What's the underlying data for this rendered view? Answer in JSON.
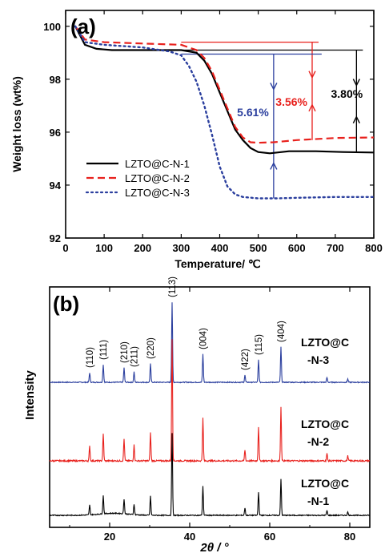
{
  "chart_data": [
    {
      "panel_label": "(a)",
      "type": "line",
      "xlabel": "Temperature/ ℃",
      "ylabel": "Weight loss (wt%)",
      "xlim": [
        0,
        800
      ],
      "ylim": [
        92,
        100.6
      ],
      "xticks": [
        "0",
        "100",
        "200",
        "300",
        "400",
        "500",
        "600",
        "700",
        "800"
      ],
      "yticks": [
        "92",
        "94",
        "96",
        "98",
        "100"
      ],
      "legend_position": "bottom-left",
      "colors": {
        "n1": "#000000",
        "n2": "#e8211d",
        "n3": "#2b3f9e"
      },
      "series": [
        {
          "name": "LZTO@C-N-1",
          "style": "solid",
          "x": [
            25,
            50,
            80,
            120,
            200,
            300,
            340,
            360,
            380,
            400,
            420,
            440,
            460,
            480,
            500,
            530,
            580,
            650,
            720,
            800
          ],
          "y": [
            100.0,
            99.3,
            99.15,
            99.1,
            99.1,
            99.1,
            99.0,
            98.7,
            98.2,
            97.5,
            96.8,
            96.1,
            95.7,
            95.4,
            95.25,
            95.2,
            95.28,
            95.28,
            95.25,
            95.23
          ]
        },
        {
          "name": "LZTO@C-N-2",
          "style": "dashed",
          "x": [
            25,
            50,
            100,
            200,
            300,
            340,
            360,
            380,
            400,
            420,
            440,
            460,
            480,
            500,
            540,
            600,
            700,
            800
          ],
          "y": [
            100.0,
            99.5,
            99.4,
            99.35,
            99.3,
            99.1,
            98.8,
            98.3,
            97.6,
            96.9,
            96.2,
            95.8,
            95.62,
            95.6,
            95.62,
            95.7,
            95.78,
            95.8
          ]
        },
        {
          "name": "LZTO@C-N-3",
          "style": "dotted",
          "x": [
            25,
            50,
            100,
            200,
            270,
            300,
            320,
            340,
            360,
            380,
            400,
            420,
            440,
            460,
            500,
            550,
            600,
            700,
            800
          ],
          "y": [
            100.0,
            99.4,
            99.3,
            99.2,
            99.05,
            98.9,
            98.5,
            97.9,
            97.0,
            95.9,
            94.7,
            93.95,
            93.65,
            93.55,
            93.5,
            93.5,
            93.52,
            93.55,
            93.55
          ]
        }
      ],
      "annotations": [
        {
          "text": "3.80%",
          "color": "#000000",
          "x": 755,
          "y_from": 99.1,
          "y_to": 95.25
        },
        {
          "text": "3.56%",
          "color": "#e8211d",
          "x": 640,
          "y_from": 99.4,
          "y_to": 95.7
        },
        {
          "text": "5.61%",
          "color": "#2b3f9e",
          "x": 540,
          "y_from": 98.95,
          "y_to": 93.5
        }
      ]
    },
    {
      "panel_label": "(b)",
      "type": "line",
      "xlabel": "2θ / °",
      "ylabel": "Intensity",
      "xlim": [
        5,
        85
      ],
      "xticks": [
        "20",
        "40",
        "60",
        "80"
      ],
      "peaks": [
        {
          "x": 15.0,
          "h": 0.12,
          "label": "(110)"
        },
        {
          "x": 18.4,
          "h": 0.22,
          "label": "(111)"
        },
        {
          "x": 23.6,
          "h": 0.18,
          "label": "(210)"
        },
        {
          "x": 26.1,
          "h": 0.13,
          "label": "(211)"
        },
        {
          "x": 30.2,
          "h": 0.23,
          "label": "(220)"
        },
        {
          "x": 35.6,
          "h": 1.0,
          "label": "(113)"
        },
        {
          "x": 43.3,
          "h": 0.35,
          "label": "(004)"
        },
        {
          "x": 53.8,
          "h": 0.09,
          "label": "(422)"
        },
        {
          "x": 57.2,
          "h": 0.28,
          "label": "(115)"
        },
        {
          "x": 62.8,
          "h": 0.44,
          "label": "(404)"
        },
        {
          "x": 74.3,
          "h": 0.06,
          "label": ""
        },
        {
          "x": 79.5,
          "h": 0.04,
          "label": ""
        }
      ],
      "series": [
        {
          "name": "LZTO@C-N-3",
          "name_line1": "LZTO@C",
          "name_line2": "-N-3",
          "color": "#2b3f9e",
          "scale": 1.0
        },
        {
          "name": "LZTO@C-N-2",
          "name_line1": "LZTO@C",
          "name_line2": "-N-2",
          "color": "#e8211d",
          "scale": 1.0
        },
        {
          "name": "LZTO@C-N-1",
          "name_line1": "LZTO@C",
          "name_line2": "-N-1",
          "color": "#000000",
          "scale": 0.92
        }
      ]
    }
  ]
}
